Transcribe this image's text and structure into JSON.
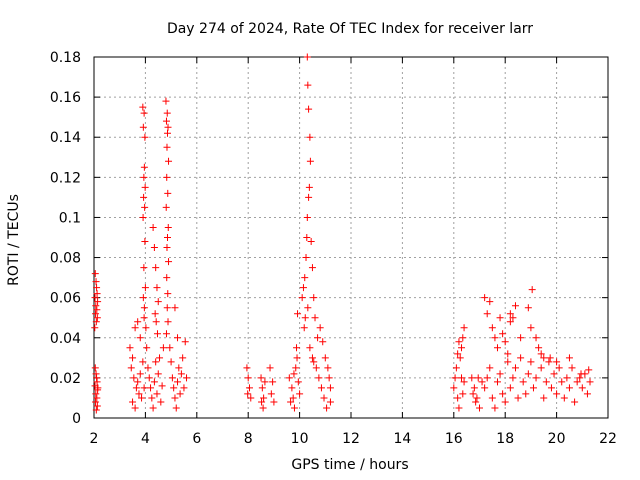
{
  "chart_data": {
    "type": "scatter",
    "title": "Day 274 of 2024, Rate Of TEC Index for receiver larr",
    "xlabel": "GPS time / hours",
    "ylabel": "ROTI / TECUs",
    "xlim": [
      2,
      22
    ],
    "ylim": [
      0,
      0.18
    ],
    "grid": true,
    "marker": "+",
    "color": "#ff0000",
    "x_ticks": [
      {
        "value": 2,
        "label": "2"
      },
      {
        "value": 4,
        "label": "4"
      },
      {
        "value": 6,
        "label": "6"
      },
      {
        "value": 8,
        "label": "8"
      },
      {
        "value": 10,
        "label": "10"
      },
      {
        "value": 12,
        "label": "12"
      },
      {
        "value": 14,
        "label": "14"
      },
      {
        "value": 16,
        "label": "16"
      },
      {
        "value": 18,
        "label": "18"
      },
      {
        "value": 20,
        "label": "20"
      },
      {
        "value": 22,
        "label": "22"
      }
    ],
    "y_ticks": [
      {
        "value": 0,
        "label": "0"
      },
      {
        "value": 0.02,
        "label": "0.02"
      },
      {
        "value": 0.04,
        "label": "0.04"
      },
      {
        "value": 0.06,
        "label": "0.06"
      },
      {
        "value": 0.08,
        "label": "0.08"
      },
      {
        "value": 0.1,
        "label": "0.1"
      },
      {
        "value": 0.12,
        "label": "0.12"
      },
      {
        "value": 0.14,
        "label": "0.14"
      },
      {
        "value": 0.16,
        "label": "0.16"
      },
      {
        "value": 0.18,
        "label": "0.18"
      }
    ],
    "series": [
      {
        "name": "ROTI",
        "points": [
          [
            2.05,
            0.072
          ],
          [
            2.08,
            0.068
          ],
          [
            2.1,
            0.065
          ],
          [
            2.12,
            0.062
          ],
          [
            2.04,
            0.06
          ],
          [
            2.14,
            0.058
          ],
          [
            2.07,
            0.056
          ],
          [
            2.11,
            0.054
          ],
          [
            2.06,
            0.052
          ],
          [
            2.13,
            0.05
          ],
          [
            2.09,
            0.048
          ],
          [
            2.03,
            0.045
          ],
          [
            2.05,
            0.025
          ],
          [
            2.08,
            0.022
          ],
          [
            2.1,
            0.02
          ],
          [
            2.12,
            0.018
          ],
          [
            2.04,
            0.016
          ],
          [
            2.14,
            0.014
          ],
          [
            2.07,
            0.012
          ],
          [
            2.11,
            0.01
          ],
          [
            2.06,
            0.008
          ],
          [
            2.13,
            0.006
          ],
          [
            2.09,
            0.004
          ],
          [
            2.15,
            0.015
          ],
          [
            3.4,
            0.035
          ],
          [
            3.5,
            0.03
          ],
          [
            3.6,
            0.045
          ],
          [
            3.7,
            0.048
          ],
          [
            3.8,
            0.04
          ],
          [
            3.45,
            0.025
          ],
          [
            3.55,
            0.02
          ],
          [
            3.65,
            0.015
          ],
          [
            3.75,
            0.012
          ],
          [
            3.85,
            0.01
          ],
          [
            3.5,
            0.008
          ],
          [
            3.6,
            0.005
          ],
          [
            3.7,
            0.018
          ],
          [
            3.8,
            0.022
          ],
          [
            3.9,
            0.028
          ],
          [
            3.95,
            0.015
          ],
          [
            3.9,
            0.155
          ],
          [
            3.95,
            0.152
          ],
          [
            3.92,
            0.145
          ],
          [
            3.98,
            0.14
          ],
          [
            3.96,
            0.125
          ],
          [
            3.94,
            0.12
          ],
          [
            3.99,
            0.115
          ],
          [
            3.93,
            0.11
          ],
          [
            3.97,
            0.105
          ],
          [
            3.91,
            0.1
          ],
          [
            3.98,
            0.088
          ],
          [
            3.94,
            0.075
          ],
          [
            4.0,
            0.065
          ],
          [
            3.92,
            0.06
          ],
          [
            3.96,
            0.055
          ],
          [
            3.95,
            0.05
          ],
          [
            4.02,
            0.045
          ],
          [
            4.05,
            0.035
          ],
          [
            4.1,
            0.025
          ],
          [
            4.15,
            0.02
          ],
          [
            4.2,
            0.015
          ],
          [
            4.25,
            0.01
          ],
          [
            4.3,
            0.005
          ],
          [
            4.35,
            0.018
          ],
          [
            4.4,
            0.028
          ],
          [
            4.45,
            0.012
          ],
          [
            4.5,
            0.022
          ],
          [
            4.55,
            0.03
          ],
          [
            4.6,
            0.008
          ],
          [
            4.65,
            0.016
          ],
          [
            4.7,
            0.035
          ],
          [
            4.3,
            0.095
          ],
          [
            4.35,
            0.085
          ],
          [
            4.4,
            0.075
          ],
          [
            4.45,
            0.065
          ],
          [
            4.5,
            0.058
          ],
          [
            4.38,
            0.052
          ],
          [
            4.42,
            0.048
          ],
          [
            4.47,
            0.042
          ],
          [
            4.8,
            0.158
          ],
          [
            4.85,
            0.152
          ],
          [
            4.82,
            0.148
          ],
          [
            4.88,
            0.145
          ],
          [
            4.86,
            0.142
          ],
          [
            4.84,
            0.135
          ],
          [
            4.9,
            0.128
          ],
          [
            4.83,
            0.12
          ],
          [
            4.87,
            0.112
          ],
          [
            4.81,
            0.105
          ],
          [
            4.89,
            0.095
          ],
          [
            4.86,
            0.09
          ],
          [
            4.84,
            0.085
          ],
          [
            4.9,
            0.078
          ],
          [
            4.83,
            0.07
          ],
          [
            4.87,
            0.062
          ],
          [
            4.85,
            0.055
          ],
          [
            4.88,
            0.048
          ],
          [
            4.82,
            0.042
          ],
          [
            4.95,
            0.035
          ],
          [
            5.0,
            0.028
          ],
          [
            5.05,
            0.02
          ],
          [
            5.1,
            0.015
          ],
          [
            5.15,
            0.01
          ],
          [
            5.2,
            0.005
          ],
          [
            5.25,
            0.018
          ],
          [
            5.3,
            0.025
          ],
          [
            5.35,
            0.012
          ],
          [
            5.4,
            0.022
          ],
          [
            5.45,
            0.03
          ],
          [
            5.5,
            0.015
          ],
          [
            5.55,
            0.038
          ],
          [
            5.6,
            0.02
          ],
          [
            5.15,
            0.055
          ],
          [
            5.25,
            0.04
          ],
          [
            7.95,
            0.025
          ],
          [
            8.0,
            0.02
          ],
          [
            8.05,
            0.015
          ],
          [
            8.1,
            0.01
          ],
          [
            7.98,
            0.012
          ],
          [
            8.5,
            0.02
          ],
          [
            8.55,
            0.015
          ],
          [
            8.6,
            0.01
          ],
          [
            8.52,
            0.008
          ],
          [
            8.58,
            0.005
          ],
          [
            8.65,
            0.018
          ],
          [
            8.85,
            0.025
          ],
          [
            8.9,
            0.012
          ],
          [
            8.95,
            0.018
          ],
          [
            9.0,
            0.008
          ],
          [
            9.6,
            0.02
          ],
          [
            9.7,
            0.015
          ],
          [
            9.75,
            0.01
          ],
          [
            9.8,
            0.005
          ],
          [
            9.85,
            0.025
          ],
          [
            9.9,
            0.03
          ],
          [
            9.95,
            0.018
          ],
          [
            10.0,
            0.012
          ],
          [
            9.65,
            0.008
          ],
          [
            9.78,
            0.022
          ],
          [
            9.88,
            0.035
          ],
          [
            9.92,
            0.052
          ],
          [
            10.1,
            0.06
          ],
          [
            10.15,
            0.065
          ],
          [
            10.2,
            0.07
          ],
          [
            10.25,
            0.08
          ],
          [
            10.3,
            0.1
          ],
          [
            10.35,
            0.11
          ],
          [
            10.28,
            0.09
          ],
          [
            10.32,
            0.055
          ],
          [
            10.22,
            0.05
          ],
          [
            10.18,
            0.045
          ],
          [
            10.3,
            0.18
          ],
          [
            10.32,
            0.166
          ],
          [
            10.35,
            0.154
          ],
          [
            10.4,
            0.14
          ],
          [
            10.42,
            0.128
          ],
          [
            10.38,
            0.115
          ],
          [
            10.45,
            0.088
          ],
          [
            10.5,
            0.075
          ],
          [
            10.55,
            0.06
          ],
          [
            10.6,
            0.05
          ],
          [
            10.7,
            0.04
          ],
          [
            10.8,
            0.045
          ],
          [
            10.9,
            0.038
          ],
          [
            11.0,
            0.03
          ],
          [
            11.1,
            0.025
          ],
          [
            11.2,
            0.015
          ],
          [
            10.5,
            0.03
          ],
          [
            10.65,
            0.025
          ],
          [
            10.75,
            0.02
          ],
          [
            10.85,
            0.015
          ],
          [
            10.95,
            0.01
          ],
          [
            11.05,
            0.005
          ],
          [
            11.15,
            0.02
          ],
          [
            10.4,
            0.035
          ],
          [
            10.55,
            0.028
          ],
          [
            11.2,
            0.008
          ],
          [
            16.0,
            0.015
          ],
          [
            16.05,
            0.02
          ],
          [
            16.1,
            0.025
          ],
          [
            16.15,
            0.01
          ],
          [
            16.2,
            0.005
          ],
          [
            16.25,
            0.03
          ],
          [
            16.3,
            0.035
          ],
          [
            16.35,
            0.04
          ],
          [
            16.4,
            0.045
          ],
          [
            16.3,
            0.02
          ],
          [
            16.35,
            0.012
          ],
          [
            16.4,
            0.018
          ],
          [
            16.2,
            0.038
          ],
          [
            16.15,
            0.032
          ],
          [
            16.7,
            0.02
          ],
          [
            16.8,
            0.015
          ],
          [
            16.9,
            0.01
          ],
          [
            17.0,
            0.005
          ],
          [
            17.1,
            0.018
          ],
          [
            16.75,
            0.012
          ],
          [
            16.85,
            0.008
          ],
          [
            16.95,
            0.02
          ],
          [
            17.2,
            0.06
          ],
          [
            17.3,
            0.052
          ],
          [
            17.4,
            0.058
          ],
          [
            17.5,
            0.045
          ],
          [
            17.6,
            0.04
          ],
          [
            17.7,
            0.035
          ],
          [
            17.8,
            0.05
          ],
          [
            17.9,
            0.042
          ],
          [
            18.0,
            0.038
          ],
          [
            18.1,
            0.032
          ],
          [
            18.2,
            0.048
          ],
          [
            18.3,
            0.05
          ],
          [
            18.4,
            0.056
          ],
          [
            18.2,
            0.052
          ],
          [
            17.2,
            0.015
          ],
          [
            17.3,
            0.02
          ],
          [
            17.4,
            0.025
          ],
          [
            17.5,
            0.01
          ],
          [
            17.6,
            0.005
          ],
          [
            17.7,
            0.018
          ],
          [
            17.8,
            0.022
          ],
          [
            17.9,
            0.012
          ],
          [
            18.0,
            0.008
          ],
          [
            18.1,
            0.028
          ],
          [
            18.2,
            0.015
          ],
          [
            18.3,
            0.02
          ],
          [
            18.4,
            0.025
          ],
          [
            18.5,
            0.01
          ],
          [
            18.6,
            0.03
          ],
          [
            18.7,
            0.018
          ],
          [
            18.8,
            0.012
          ],
          [
            18.9,
            0.022
          ],
          [
            19.0,
            0.028
          ],
          [
            19.1,
            0.015
          ],
          [
            19.2,
            0.02
          ],
          [
            19.3,
            0.035
          ],
          [
            19.4,
            0.025
          ],
          [
            19.5,
            0.01
          ],
          [
            19.6,
            0.018
          ],
          [
            19.7,
            0.028
          ],
          [
            19.8,
            0.015
          ],
          [
            19.9,
            0.022
          ],
          [
            20.0,
            0.012
          ],
          [
            20.1,
            0.025
          ],
          [
            20.2,
            0.018
          ],
          [
            20.3,
            0.01
          ],
          [
            20.4,
            0.02
          ],
          [
            20.5,
            0.015
          ],
          [
            20.6,
            0.025
          ],
          [
            20.7,
            0.008
          ],
          [
            20.8,
            0.018
          ],
          [
            20.9,
            0.02
          ],
          [
            21.0,
            0.015
          ],
          [
            21.1,
            0.022
          ],
          [
            21.2,
            0.012
          ],
          [
            21.3,
            0.018
          ],
          [
            19.05,
            0.064
          ],
          [
            19.0,
            0.045
          ],
          [
            19.2,
            0.04
          ],
          [
            19.5,
            0.03
          ],
          [
            20.0,
            0.028
          ],
          [
            20.5,
            0.03
          ],
          [
            20.95,
            0.022
          ],
          [
            21.25,
            0.024
          ],
          [
            18.6,
            0.04
          ],
          [
            18.9,
            0.055
          ],
          [
            19.4,
            0.032
          ],
          [
            19.75,
            0.03
          ]
        ]
      }
    ]
  }
}
